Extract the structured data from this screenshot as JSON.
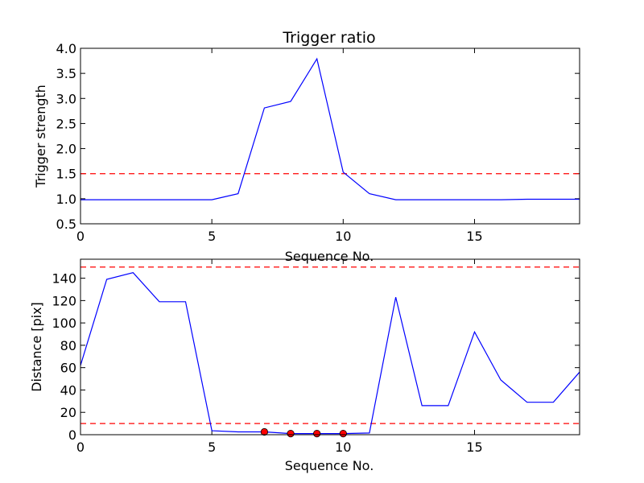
{
  "chart_data": [
    {
      "type": "line",
      "title": "Trigger ratio",
      "xlabel": "Sequence No.",
      "ylabel": "Trigger strength",
      "xlim": [
        0,
        19
      ],
      "ylim": [
        0.5,
        4.0
      ],
      "xticks": [
        0,
        5,
        10,
        15
      ],
      "xtick_labels": [
        "0",
        "5",
        "10",
        "15"
      ],
      "yticks": [
        0.5,
        1.0,
        1.5,
        2.0,
        2.5,
        3.0,
        3.5,
        4.0
      ],
      "ytick_labels": [
        "0.5",
        "1.0",
        "1.5",
        "2.0",
        "2.5",
        "3.0",
        "3.5",
        "4.0"
      ],
      "series_color": "#0000ff",
      "threshold_color": "#ff0000",
      "series": [
        {
          "x": [
            0,
            1,
            2,
            3,
            4,
            5,
            6,
            7,
            8,
            9,
            10,
            11,
            12,
            13,
            14,
            15,
            16,
            17,
            18,
            19
          ],
          "values": [
            0.98,
            0.98,
            0.98,
            0.98,
            0.98,
            0.98,
            1.1,
            2.81,
            2.94,
            3.79,
            1.53,
            1.1,
            0.98,
            0.98,
            0.98,
            0.98,
            0.98,
            0.99,
            0.99,
            0.99
          ]
        }
      ],
      "thresholds": [
        1.5
      ],
      "markers": null
    },
    {
      "type": "line",
      "title": "",
      "xlabel": "Sequence No.",
      "ylabel": "Distance [pix]",
      "xlim": [
        0,
        19
      ],
      "ylim": [
        0,
        157
      ],
      "xticks": [
        0,
        5,
        10,
        15
      ],
      "xtick_labels": [
        "0",
        "5",
        "10",
        "15"
      ],
      "yticks": [
        0,
        20,
        40,
        60,
        80,
        100,
        120,
        140
      ],
      "ytick_labels": [
        "0",
        "20",
        "40",
        "60",
        "80",
        "100",
        "120",
        "140"
      ],
      "series_color": "#0000ff",
      "threshold_color": "#ff0000",
      "series": [
        {
          "x": [
            0,
            1,
            2,
            3,
            4,
            5,
            6,
            7,
            8,
            9,
            10,
            11,
            12,
            13,
            14,
            15,
            16,
            17,
            18,
            19
          ],
          "values": [
            62,
            139,
            145,
            119,
            119,
            3.5,
            2.5,
            2.5,
            1,
            1,
            1,
            1.5,
            123,
            26,
            26,
            92,
            49,
            29,
            29,
            56
          ]
        }
      ],
      "thresholds": [
        150,
        10
      ],
      "markers": {
        "color": "#ff0000",
        "x": [
          7,
          8,
          9,
          10
        ],
        "y": [
          2.5,
          1,
          1,
          1
        ]
      }
    }
  ]
}
